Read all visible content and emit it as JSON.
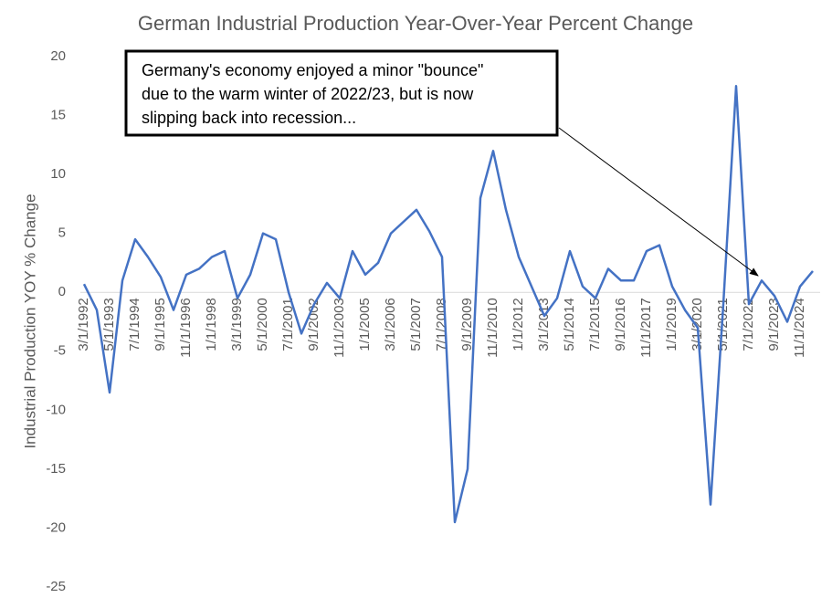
{
  "chart_data": {
    "type": "line",
    "title": "German Industrial Production Year-Over-Year Percent Change",
    "y_label": "Industrial Production YOY % Change",
    "annotation": [
      "Germany's economy enjoyed a minor \"bounce\"",
      "due to the warm winter of 2022/23, but is now",
      "slipping back into recession..."
    ],
    "categories": [
      "3/1/1992",
      null,
      "5/1/1993",
      null,
      "7/1/1994",
      null,
      "9/1/1995",
      null,
      "11/1/1996",
      null,
      "1/1/1998",
      null,
      "3/1/1999",
      null,
      "5/1/2000",
      null,
      "7/1/2001",
      null,
      "9/1/2002",
      null,
      "11/1/2003",
      null,
      "1/1/2005",
      null,
      "3/1/2006",
      null,
      "5/1/2007",
      null,
      "7/1/2008",
      null,
      "9/1/2009",
      null,
      "11/1/2010",
      null,
      "1/1/2012",
      null,
      "3/1/2013",
      null,
      "5/1/2014",
      null,
      "7/1/2015",
      null,
      "9/1/2016",
      null,
      "11/1/2017",
      null,
      "1/1/2019",
      null,
      "3/1/2020",
      null,
      "5/1/2021",
      null,
      "7/1/2022",
      null,
      "9/1/2023",
      null,
      "11/1/2024",
      null
    ],
    "series": [
      {
        "name": "Industrial Production YOY % Change",
        "color": "#4472c4",
        "values": [
          0.7,
          -1.5,
          -8.5,
          1,
          4.5,
          3,
          1.3,
          -1.5,
          1.5,
          2,
          3,
          3.5,
          -0.5,
          1.5,
          5,
          4.5,
          0,
          -3.5,
          -1,
          0.8,
          -0.5,
          3.5,
          1.5,
          2.5,
          5,
          6,
          7,
          5.2,
          3,
          -19.5,
          -15,
          8,
          12,
          7,
          3,
          0.5,
          -2,
          -0.5,
          3.5,
          0.5,
          -0.5,
          2,
          1,
          1,
          3.5,
          4,
          0.5,
          -1.5,
          -3,
          -18,
          -1,
          17.5,
          -1,
          1,
          -0.3,
          -2.5,
          0.5,
          1.8
        ]
      }
    ],
    "ylim": [
      -25,
      20
    ],
    "yticks": [
      -25,
      -20,
      -15,
      -10,
      -5,
      0,
      5,
      10,
      15,
      20
    ],
    "grid": false
  }
}
